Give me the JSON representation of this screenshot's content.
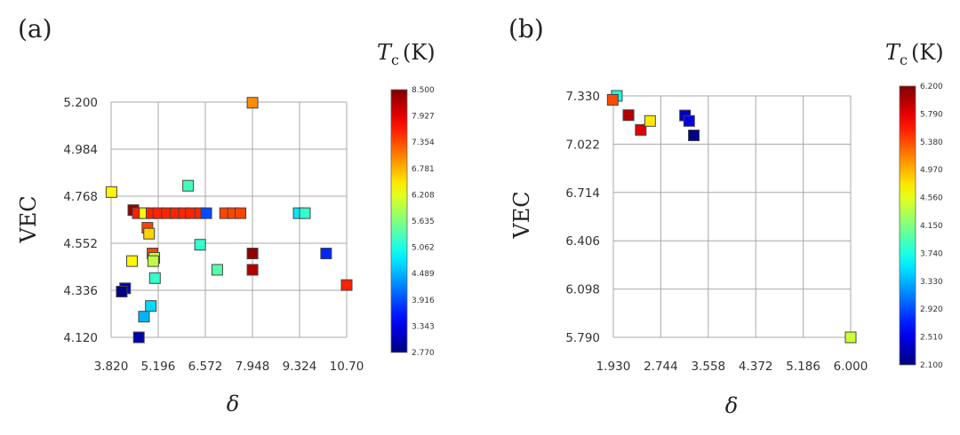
{
  "figure": {
    "panel_a_label": "(a)",
    "panel_b_label": "(b)"
  },
  "chart_data": [
    {
      "type": "scatter",
      "panel": "(a)",
      "xlabel": "δ",
      "ylabel": "VEC",
      "xticks": [
        "3.820",
        "5.196",
        "6.572",
        "7.948",
        "9.324",
        "10.70"
      ],
      "yticks": [
        "4.120",
        "4.336",
        "4.552",
        "4.768",
        "4.984",
        "5.200"
      ],
      "xlim": [
        3.82,
        10.7
      ],
      "ylim": [
        4.12,
        5.2
      ],
      "colorbar": {
        "title_main": "T",
        "title_sub": "c",
        "title_unit": "(K)",
        "ticks": [
          "2.770",
          "3.343",
          "3.916",
          "4.489",
          "5.062",
          "5.635",
          "6.208",
          "6.781",
          "7.354",
          "7.927",
          "8.500"
        ],
        "range": [
          2.77,
          8.5
        ]
      },
      "points": [
        {
          "x": 3.83,
          "y": 4.787,
          "c": 6.4
        },
        {
          "x": 7.95,
          "y": 5.197,
          "c": 7.0
        },
        {
          "x": 6.07,
          "y": 4.816,
          "c": 5.3
        },
        {
          "x": 4.47,
          "y": 4.704,
          "c": 8.4
        },
        {
          "x": 4.6,
          "y": 4.69,
          "c": 7.6
        },
        {
          "x": 4.8,
          "y": 4.69,
          "c": 6.3
        },
        {
          "x": 5.0,
          "y": 4.69,
          "c": 7.6
        },
        {
          "x": 5.2,
          "y": 4.69,
          "c": 7.6
        },
        {
          "x": 5.45,
          "y": 4.69,
          "c": 7.6
        },
        {
          "x": 5.7,
          "y": 4.69,
          "c": 7.6
        },
        {
          "x": 5.95,
          "y": 4.69,
          "c": 7.6
        },
        {
          "x": 6.15,
          "y": 4.69,
          "c": 7.6
        },
        {
          "x": 6.42,
          "y": 4.69,
          "c": 7.6
        },
        {
          "x": 6.6,
          "y": 4.69,
          "c": 3.9
        },
        {
          "x": 7.15,
          "y": 4.69,
          "c": 7.4
        },
        {
          "x": 7.38,
          "y": 4.69,
          "c": 7.4
        },
        {
          "x": 7.6,
          "y": 4.69,
          "c": 7.4
        },
        {
          "x": 9.3,
          "y": 4.69,
          "c": 4.8
        },
        {
          "x": 9.48,
          "y": 4.69,
          "c": 5.2
        },
        {
          "x": 4.88,
          "y": 4.623,
          "c": 7.4
        },
        {
          "x": 4.93,
          "y": 4.596,
          "c": 6.6
        },
        {
          "x": 6.42,
          "y": 4.545,
          "c": 5.2
        },
        {
          "x": 5.03,
          "y": 4.505,
          "c": 7.4
        },
        {
          "x": 5.08,
          "y": 4.485,
          "c": 6.0
        },
        {
          "x": 5.05,
          "y": 4.47,
          "c": 6.0
        },
        {
          "x": 4.43,
          "y": 4.47,
          "c": 6.4
        },
        {
          "x": 7.95,
          "y": 4.505,
          "c": 8.4
        },
        {
          "x": 10.1,
          "y": 4.505,
          "c": 3.7
        },
        {
          "x": 7.95,
          "y": 4.43,
          "c": 8.2
        },
        {
          "x": 6.92,
          "y": 4.43,
          "c": 5.4
        },
        {
          "x": 5.1,
          "y": 4.392,
          "c": 5.2
        },
        {
          "x": 10.7,
          "y": 4.36,
          "c": 7.6
        },
        {
          "x": 4.23,
          "y": 4.345,
          "c": 3.1
        },
        {
          "x": 4.13,
          "y": 4.33,
          "c": 2.8
        },
        {
          "x": 4.98,
          "y": 4.264,
          "c": 4.7
        },
        {
          "x": 4.78,
          "y": 4.215,
          "c": 4.5
        },
        {
          "x": 4.63,
          "y": 4.12,
          "c": 3.0
        }
      ]
    },
    {
      "type": "scatter",
      "panel": "(b)",
      "xlabel": "δ",
      "ylabel": "VEC",
      "xticks": [
        "1.930",
        "2.744",
        "3.558",
        "4.372",
        "5.186",
        "6.000"
      ],
      "yticks": [
        "5.790",
        "6.098",
        "6.406",
        "6.714",
        "7.022",
        "7.330"
      ],
      "xlim": [
        1.93,
        6.0
      ],
      "ylim": [
        5.79,
        7.33
      ],
      "colorbar": {
        "title_main": "T",
        "title_sub": "c",
        "title_unit": "(K)",
        "ticks": [
          "2.100",
          "2.510",
          "2.920",
          "3.330",
          "3.740",
          "4.150",
          "4.560",
          "4.970",
          "5.380",
          "5.790",
          "6.200"
        ],
        "range": [
          2.1,
          6.2
        ]
      },
      "points": [
        {
          "x": 1.99,
          "y": 7.33,
          "c": 3.75
        },
        {
          "x": 1.92,
          "y": 7.305,
          "c": 5.4
        },
        {
          "x": 2.19,
          "y": 7.207,
          "c": 6.0
        },
        {
          "x": 2.4,
          "y": 7.113,
          "c": 5.8
        },
        {
          "x": 2.56,
          "y": 7.17,
          "c": 4.75
        },
        {
          "x": 3.16,
          "y": 7.205,
          "c": 2.35
        },
        {
          "x": 3.23,
          "y": 7.17,
          "c": 2.5
        },
        {
          "x": 3.31,
          "y": 7.078,
          "c": 2.15
        },
        {
          "x": 6.0,
          "y": 5.79,
          "c": 4.45
        }
      ]
    }
  ]
}
